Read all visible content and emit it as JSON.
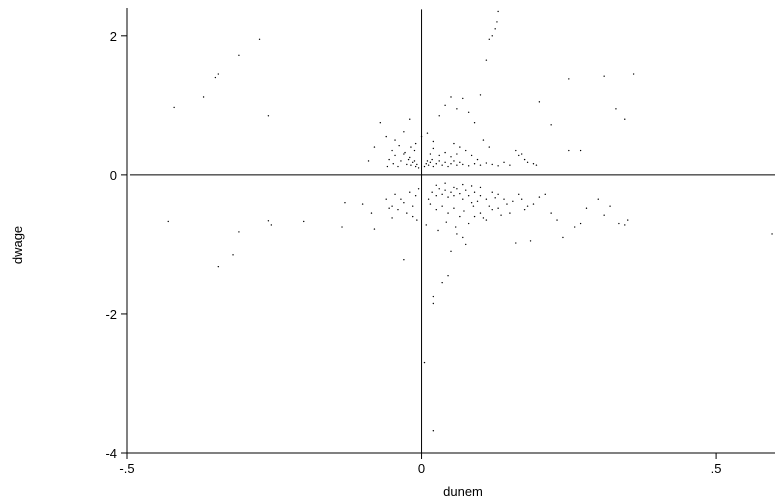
{
  "chart_data": {
    "type": "scatter",
    "title": "",
    "xlabel": "dunem",
    "ylabel": "dwage",
    "xlim": [
      -0.5,
      0.6
    ],
    "ylim": [
      -4,
      2.4
    ],
    "x_ticks": [
      -0.5,
      0,
      0.5
    ],
    "x_tick_labels": [
      "-.5",
      "0",
      ".5"
    ],
    "y_ticks": [
      -4,
      -2,
      0,
      2
    ],
    "y_tick_labels": [
      "-4",
      "-2",
      "0",
      "2"
    ],
    "grid": false,
    "legend": "none",
    "reference_lines": [
      {
        "orientation": "horizontal",
        "value": 0
      },
      {
        "orientation": "vertical",
        "value": 0
      }
    ],
    "marker_color": "#000000",
    "points": [
      [
        -0.42,
        0.97
      ],
      [
        -0.37,
        1.12
      ],
      [
        -0.35,
        1.4
      ],
      [
        -0.345,
        1.45
      ],
      [
        -0.31,
        1.72
      ],
      [
        -0.275,
        1.95
      ],
      [
        -0.26,
        0.85
      ],
      [
        -0.43,
        -0.67
      ],
      [
        -0.345,
        -1.32
      ],
      [
        -0.32,
        -1.15
      ],
      [
        -0.31,
        -0.82
      ],
      [
        -0.26,
        -0.66
      ],
      [
        -0.255,
        -0.72
      ],
      [
        -0.2,
        -0.67
      ],
      [
        -0.135,
        -0.75
      ],
      [
        -0.13,
        -0.4
      ],
      [
        -0.1,
        -0.42
      ],
      [
        -0.085,
        -0.55
      ],
      [
        -0.08,
        -0.78
      ],
      [
        -0.06,
        -0.35
      ],
      [
        -0.05,
        -0.45
      ],
      [
        -0.03,
        -1.22
      ],
      [
        -0.015,
        -0.6
      ],
      [
        0.005,
        -2.7
      ],
      [
        0.02,
        -1.75
      ],
      [
        0.02,
        -1.85
      ],
      [
        0.02,
        -3.68
      ],
      [
        0.035,
        -1.55
      ],
      [
        0.045,
        -1.45
      ],
      [
        0.05,
        -1.1
      ],
      [
        0.06,
        -0.85
      ],
      [
        0.07,
        -0.9
      ],
      [
        0.075,
        -1.0
      ],
      [
        0.08,
        -0.7
      ],
      [
        0.09,
        -0.6
      ],
      [
        0.1,
        -0.55
      ],
      [
        0.11,
        -0.65
      ],
      [
        0.12,
        -0.5
      ],
      [
        0.13,
        -0.48
      ],
      [
        0.15,
        -0.55
      ],
      [
        0.16,
        -0.98
      ],
      [
        0.17,
        -0.35
      ],
      [
        0.18,
        -0.45
      ],
      [
        0.185,
        -0.95
      ],
      [
        0.2,
        -0.32
      ],
      [
        0.21,
        -0.28
      ],
      [
        0.22,
        -0.55
      ],
      [
        0.23,
        -0.65
      ],
      [
        0.24,
        -0.9
      ],
      [
        0.26,
        -0.75
      ],
      [
        0.27,
        -0.7
      ],
      [
        0.28,
        -0.48
      ],
      [
        0.3,
        -0.35
      ],
      [
        0.31,
        -0.58
      ],
      [
        0.32,
        -0.45
      ],
      [
        0.335,
        -0.7
      ],
      [
        0.345,
        -0.72
      ],
      [
        0.35,
        -0.65
      ],
      [
        0.595,
        -0.85
      ],
      [
        0.012,
        -0.35
      ],
      [
        0.018,
        -0.25
      ],
      [
        0.025,
        -0.3
      ],
      [
        0.03,
        -0.2
      ],
      [
        0.035,
        -0.28
      ],
      [
        0.04,
        -0.22
      ],
      [
        0.045,
        -0.32
      ],
      [
        0.05,
        -0.25
      ],
      [
        0.055,
        -0.3
      ],
      [
        0.06,
        -0.2
      ],
      [
        0.065,
        -0.27
      ],
      [
        0.07,
        -0.35
      ],
      [
        0.075,
        -0.22
      ],
      [
        0.08,
        -0.3
      ],
      [
        0.085,
        -0.4
      ],
      [
        0.09,
        -0.25
      ],
      [
        0.095,
        -0.38
      ],
      [
        0.1,
        -0.3
      ],
      [
        0.11,
        -0.35
      ],
      [
        0.115,
        -0.45
      ],
      [
        0.12,
        -0.25
      ],
      [
        0.125,
        -0.33
      ],
      [
        0.13,
        -0.28
      ],
      [
        0.14,
        -0.35
      ],
      [
        0.145,
        -0.42
      ],
      [
        0.015,
        -0.42
      ],
      [
        0.025,
        -0.5
      ],
      [
        0.035,
        -0.45
      ],
      [
        0.045,
        -0.55
      ],
      [
        0.055,
        -0.48
      ],
      [
        0.065,
        -0.6
      ],
      [
        -0.01,
        -0.3
      ],
      [
        -0.015,
        -0.45
      ],
      [
        -0.02,
        -0.25
      ],
      [
        -0.025,
        -0.55
      ],
      [
        -0.03,
        -0.4
      ],
      [
        -0.035,
        -0.35
      ],
      [
        -0.04,
        -0.5
      ],
      [
        -0.045,
        -0.28
      ],
      [
        -0.05,
        -0.62
      ],
      [
        -0.055,
        -0.48
      ],
      [
        -0.005,
        -0.2
      ],
      [
        -0.008,
        -0.65
      ],
      [
        0.008,
        -0.72
      ],
      [
        0.028,
        -0.8
      ],
      [
        0.042,
        -0.68
      ],
      [
        0.058,
        -0.75
      ],
      [
        0.072,
        -0.52
      ],
      [
        0.088,
        -0.45
      ],
      [
        0.105,
        -0.62
      ],
      [
        0.135,
        -0.58
      ],
      [
        0.155,
        -0.38
      ],
      [
        0.165,
        -0.28
      ],
      [
        0.175,
        -0.5
      ],
      [
        0.19,
        -0.42
      ],
      [
        0.025,
        -0.15
      ],
      [
        0.04,
        -0.12
      ],
      [
        0.055,
        -0.18
      ],
      [
        0.07,
        -0.14
      ],
      [
        0.085,
        -0.16
      ],
      [
        0.1,
        -0.18
      ],
      [
        -0.01,
        0.12
      ],
      [
        -0.015,
        0.18
      ],
      [
        -0.02,
        0.25
      ],
      [
        -0.025,
        0.15
      ],
      [
        -0.03,
        0.3
      ],
      [
        -0.035,
        0.2
      ],
      [
        -0.04,
        0.12
      ],
      [
        -0.045,
        0.28
      ],
      [
        -0.05,
        0.35
      ],
      [
        -0.055,
        0.22
      ],
      [
        -0.005,
        0.1
      ],
      [
        -0.008,
        0.15
      ],
      [
        -0.012,
        0.2
      ],
      [
        -0.018,
        0.14
      ],
      [
        -0.022,
        0.22
      ],
      [
        0.005,
        0.12
      ],
      [
        0.008,
        0.16
      ],
      [
        0.01,
        0.2
      ],
      [
        0.012,
        0.14
      ],
      [
        0.015,
        0.18
      ],
      [
        0.018,
        0.22
      ],
      [
        0.02,
        0.12
      ],
      [
        0.025,
        0.16
      ],
      [
        0.03,
        0.2
      ],
      [
        0.035,
        0.14
      ],
      [
        0.04,
        0.18
      ],
      [
        0.045,
        0.12
      ],
      [
        0.05,
        0.16
      ],
      [
        0.055,
        0.2
      ],
      [
        0.06,
        0.14
      ],
      [
        0.065,
        0.18
      ],
      [
        0.07,
        0.15
      ],
      [
        0.08,
        0.13
      ],
      [
        0.09,
        0.16
      ],
      [
        0.1,
        0.14
      ],
      [
        0.11,
        0.17
      ],
      [
        0.12,
        0.15
      ],
      [
        0.13,
        0.13
      ],
      [
        0.14,
        0.18
      ],
      [
        0.15,
        0.14
      ],
      [
        0.16,
        0.35
      ],
      [
        0.165,
        0.28
      ],
      [
        0.17,
        0.3
      ],
      [
        0.175,
        0.22
      ],
      [
        0.18,
        0.18
      ],
      [
        0.19,
        0.16
      ],
      [
        0.195,
        0.14
      ],
      [
        -0.06,
        0.55
      ],
      [
        -0.07,
        0.75
      ],
      [
        -0.08,
        0.4
      ],
      [
        -0.09,
        0.2
      ],
      [
        -0.045,
        0.5
      ],
      [
        -0.03,
        0.62
      ],
      [
        -0.02,
        0.8
      ],
      [
        -0.01,
        0.45
      ],
      [
        0.0,
        0.55
      ],
      [
        0.01,
        0.6
      ],
      [
        0.02,
        0.48
      ],
      [
        0.03,
        0.85
      ],
      [
        0.04,
        1.0
      ],
      [
        0.05,
        1.12
      ],
      [
        0.06,
        0.95
      ],
      [
        0.07,
        1.1
      ],
      [
        0.08,
        0.9
      ],
      [
        0.09,
        0.75
      ],
      [
        0.1,
        1.15
      ],
      [
        0.11,
        1.65
      ],
      [
        0.115,
        1.95
      ],
      [
        0.12,
        2.0
      ],
      [
        0.125,
        2.1
      ],
      [
        0.128,
        2.2
      ],
      [
        0.13,
        2.35
      ],
      [
        0.105,
        0.5
      ],
      [
        0.115,
        0.4
      ],
      [
        0.2,
        1.05
      ],
      [
        0.22,
        0.72
      ],
      [
        0.25,
        0.35
      ],
      [
        0.25,
        1.38
      ],
      [
        0.31,
        1.42
      ],
      [
        0.33,
        0.95
      ],
      [
        0.345,
        0.8
      ],
      [
        0.36,
        1.45
      ],
      [
        0.27,
        0.35
      ],
      [
        0.015,
        0.3
      ],
      [
        0.02,
        0.38
      ],
      [
        0.03,
        0.28
      ],
      [
        0.04,
        0.32
      ],
      [
        0.05,
        0.26
      ],
      [
        0.06,
        0.3
      ],
      [
        -0.012,
        0.35
      ],
      [
        -0.018,
        0.4
      ],
      [
        -0.028,
        0.32
      ],
      [
        -0.038,
        0.42
      ],
      [
        -0.048,
        0.16
      ],
      [
        -0.058,
        0.12
      ],
      [
        0.085,
        0.28
      ],
      [
        0.095,
        0.22
      ],
      [
        0.075,
        0.35
      ],
      [
        0.065,
        0.4
      ],
      [
        0.055,
        0.45
      ]
    ]
  }
}
